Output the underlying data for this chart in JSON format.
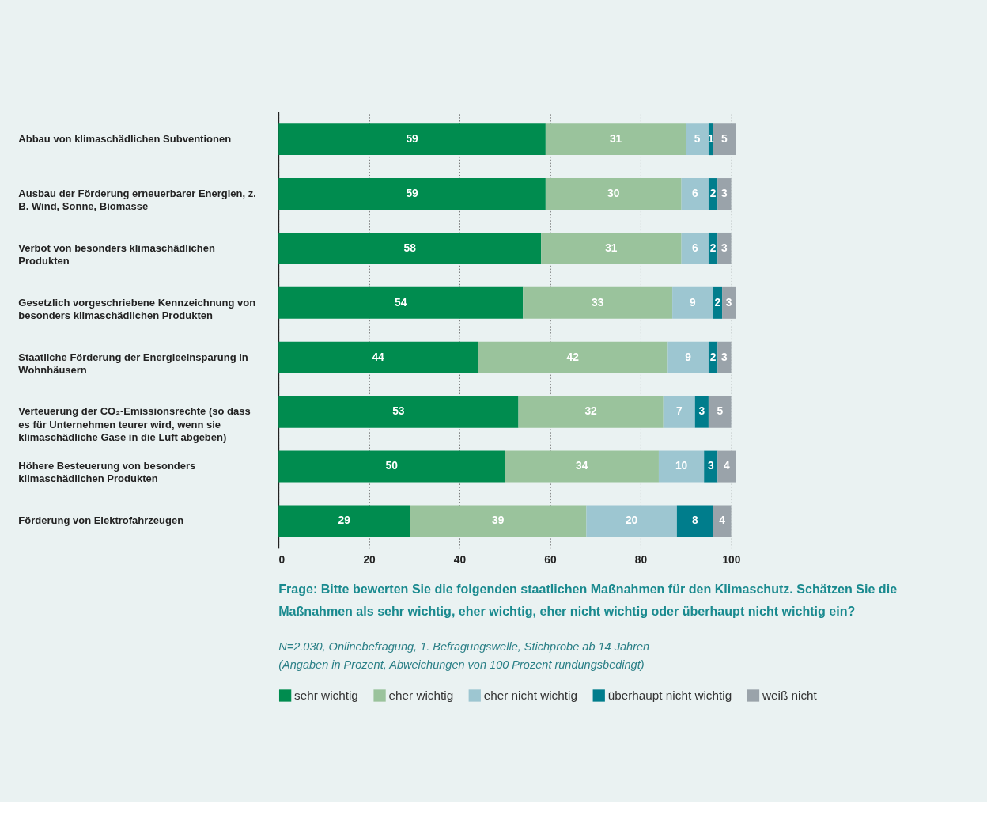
{
  "chart_data": {
    "type": "bar",
    "orientation": "horizontal",
    "stacked": true,
    "data_labels": true,
    "grid": "x",
    "legend": "bottom",
    "categories": [
      "Abbau von klimaschädlichen Subventionen",
      "Ausbau der Förderung erneuerbarer Energien, z. B. Wind, Sonne, Biomasse",
      "Verbot von besonders klimaschädlichen Produkten",
      "Gesetzlich vorgeschriebene Kennzeichnung von besonders klimaschädlichen Produkten",
      "Staatliche Förderung der Energieeinsparung in Wohnhäusern",
      "Verteuerung der CO₂-Emissionsrechte (so dass es für Unternehmen teurer wird, wenn sie klimaschädliche Gase in die Luft abgeben)",
      "Höhere Besteuerung von besonders klimaschädlichen Produkten",
      "Förderung von Elektrofahrzeugen"
    ],
    "series": [
      {
        "name": "sehr wichtig",
        "color": "#008c4f",
        "values": [
          59,
          59,
          58,
          54,
          44,
          53,
          50,
          29
        ]
      },
      {
        "name": "eher wichtig",
        "color": "#9ac39c",
        "values": [
          31,
          30,
          31,
          33,
          42,
          32,
          34,
          39
        ]
      },
      {
        "name": "eher nicht wichtig",
        "color": "#9dc6d1",
        "values": [
          5,
          6,
          6,
          9,
          9,
          7,
          10,
          20
        ]
      },
      {
        "name": "überhaupt nicht wichtig",
        "color": "#007d8c",
        "values": [
          1,
          2,
          2,
          2,
          2,
          3,
          3,
          8
        ]
      },
      {
        "name": "weiß nicht",
        "color": "#9aa3aa",
        "values": [
          5,
          3,
          3,
          3,
          3,
          5,
          4,
          4
        ]
      }
    ],
    "xlim": [
      0,
      101
    ],
    "xticks": [
      0,
      20,
      40,
      60,
      80,
      100
    ],
    "annotations": [
      "Frage: Bitte bewerten Sie die folgenden staatlichen Maßnahmen für den Klimaschutz. Schätzen Sie die Maßnahmen als sehr wichtig, eher wichtig, eher nicht wichtig oder überhaupt nicht wichtig ein?",
      "N=2.030, Onlinebefragung, 1. Befragungswelle, Stichprobe ab 14 Jahren",
      "(Angaben in Prozent, Abweichungen von 100 Prozent rundungsbedingt)"
    ]
  }
}
